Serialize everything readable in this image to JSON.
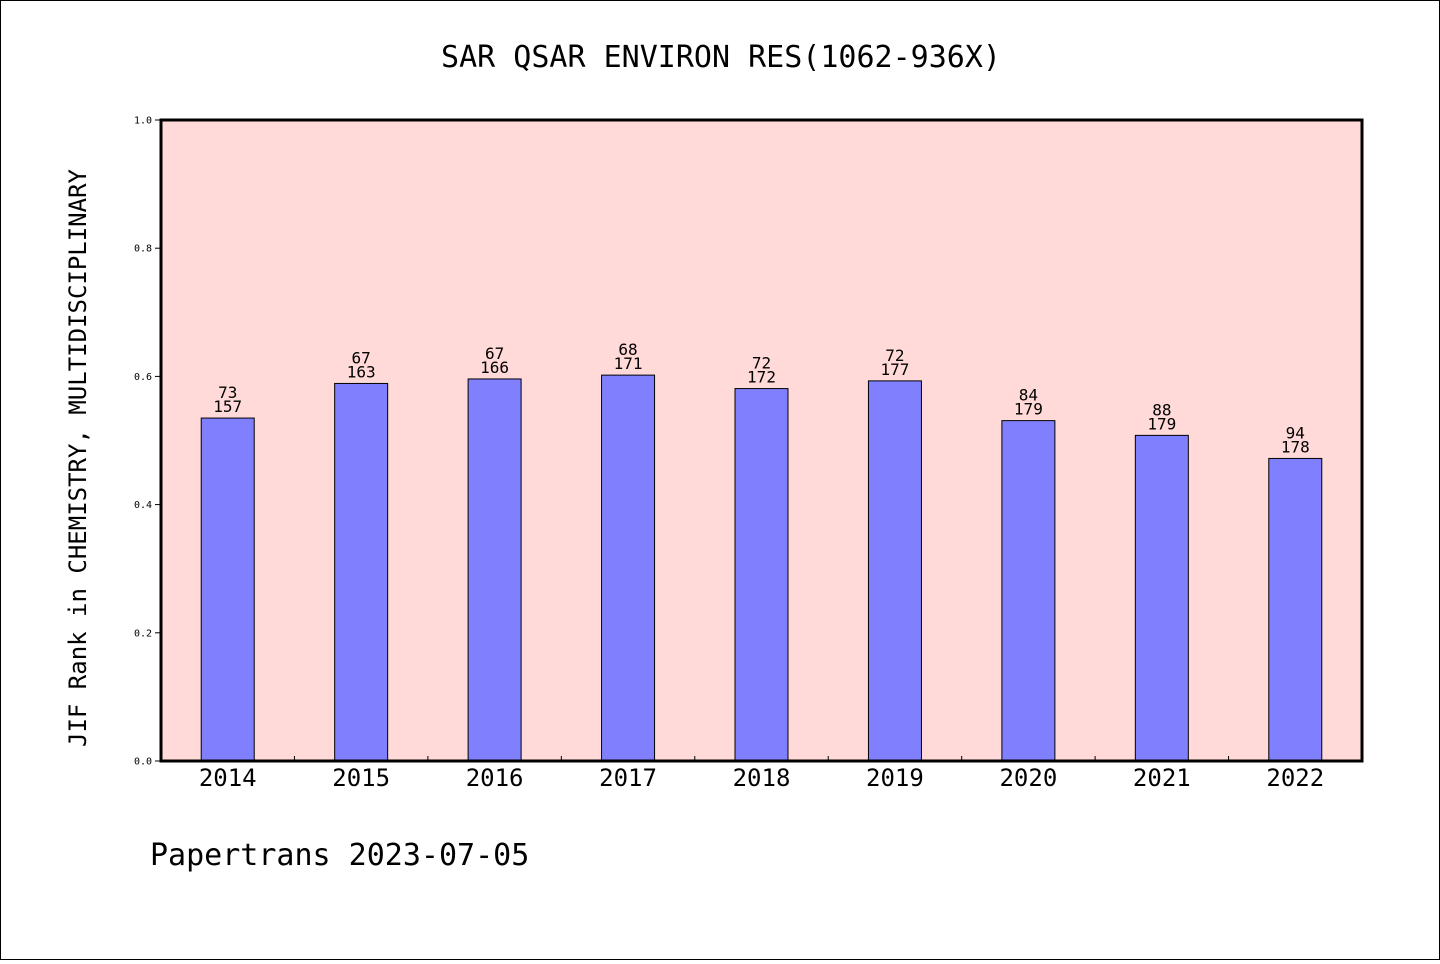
{
  "chart_data": {
    "type": "bar",
    "title": "SAR QSAR ENVIRON RES(1062-936X)",
    "xlabel": "",
    "ylabel": "JIF Rank in CHEMISTRY, MULTIDISCIPLINARY",
    "ylim": [
      0.0,
      1.0
    ],
    "yticks": [
      "0.0",
      "0.2",
      "0.4",
      "0.6",
      "0.8",
      "1.0"
    ],
    "categories": [
      "2014",
      "2015",
      "2016",
      "2017",
      "2018",
      "2019",
      "2020",
      "2021",
      "2022"
    ],
    "values": [
      0.535,
      0.589,
      0.596,
      0.602,
      0.581,
      0.593,
      0.531,
      0.508,
      0.472
    ],
    "rank": [
      "73",
      "67",
      "67",
      "68",
      "72",
      "72",
      "84",
      "88",
      "94"
    ],
    "total": [
      "157",
      "163",
      "166",
      "171",
      "172",
      "177",
      "179",
      "179",
      "178"
    ],
    "colors": {
      "plot_background": "#FFDAD8",
      "bar": "#8080FF"
    },
    "grid": false,
    "legend": "none"
  },
  "footer": {
    "text": "Papertrans 2023-07-05"
  }
}
